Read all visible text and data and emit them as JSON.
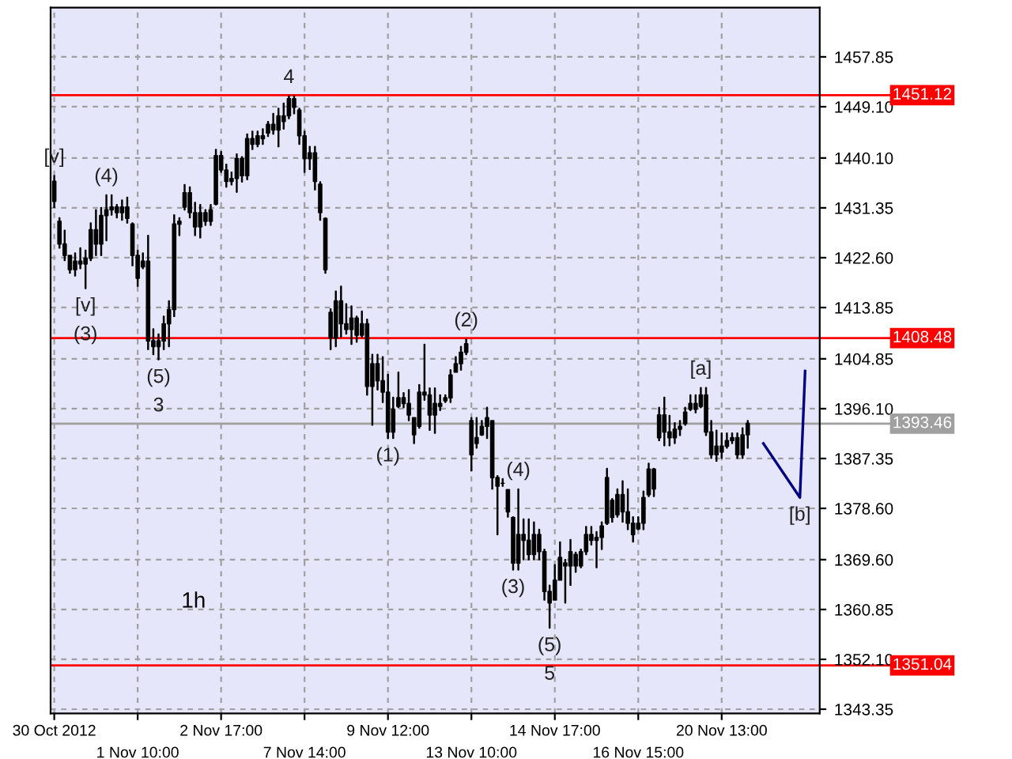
{
  "chart_data": {
    "type": "candlestick",
    "categories": [
      "30 Oct 2012",
      null,
      null,
      null,
      null,
      null,
      null,
      null,
      null,
      null,
      null,
      null,
      null,
      null,
      null,
      null,
      "1 Nov 10:00",
      null,
      null,
      null,
      null,
      null,
      null,
      null,
      null,
      null,
      null,
      null,
      null,
      null,
      null,
      null,
      "2 Nov 17:00",
      null,
      null,
      null,
      null,
      null,
      null,
      null,
      null,
      null,
      null,
      null,
      null,
      null,
      null,
      null,
      "7 Nov 14:00",
      null,
      null,
      null,
      null,
      null,
      null,
      null,
      null,
      null,
      null,
      null,
      null,
      null,
      null,
      null,
      "9 Nov 12:00",
      null,
      null,
      null,
      null,
      null,
      null,
      null,
      null,
      null,
      null,
      null,
      null,
      null,
      null,
      null,
      "13 Nov 10:00",
      null,
      null,
      null,
      null,
      null,
      null,
      null,
      null,
      null,
      null,
      null,
      null,
      null,
      null,
      null,
      "14 Nov 17:00",
      null,
      null,
      null,
      null,
      null,
      null,
      null,
      null,
      null,
      null,
      null,
      null,
      null,
      null,
      null,
      "16 Nov 15:00",
      null,
      null,
      null,
      null,
      null,
      null,
      null,
      null,
      null,
      null,
      null,
      null,
      null,
      null,
      null,
      "20 Nov 13:00",
      null,
      null,
      null,
      null,
      null,
      null,
      null,
      null,
      null,
      null,
      null,
      null,
      null,
      null,
      null,
      null,
      null,
      null,
      null
    ],
    "ohlc": [
      [
        1436,
        1437.0,
        1431.4,
        1432.5
      ],
      [
        1429.0,
        1429.6,
        1424.3,
        1425.0
      ],
      [
        1425.0,
        1427.4,
        1422.1,
        1423.0
      ],
      [
        1423.0,
        1423.0,
        1419.9,
        1420.5
      ],
      [
        1420.5,
        1423.4,
        1419.4,
        1422.0
      ],
      [
        1422.0,
        1424.3,
        1420.7,
        1421.5
      ],
      [
        1421.5,
        1423.9,
        1417.2,
        1422.5
      ],
      [
        1422.5,
        1428.7,
        1422.1,
        1427.5
      ],
      [
        1427.5,
        1431.0,
        1423.0,
        1425.0
      ],
      [
        1425.0,
        1431.4,
        1423.0,
        1430.0
      ],
      [
        1430.0,
        1433.6,
        1425.6,
        1431.0
      ],
      [
        1431.0,
        1433.6,
        1430.1,
        1431.5
      ],
      [
        1431.5,
        1431.9,
        1429.6,
        1430.5
      ],
      [
        1430.5,
        1432.7,
        1429.2,
        1431.5
      ],
      [
        1431.5,
        1433.2,
        1428.7,
        1429.5
      ],
      [
        1428.5,
        1428.7,
        1421.2,
        1423.0
      ],
      [
        1423.0,
        1423.9,
        1417.6,
        1419.0
      ],
      [
        1421.0,
        1423.4,
        1420.7,
        1422.0
      ],
      [
        1422.0,
        1426.5,
        1406.5,
        1408.0
      ],
      [
        1408.0,
        1410.1,
        1405.6,
        1407.0
      ],
      [
        1407.0,
        1409.2,
        1404.7,
        1408.0
      ],
      [
        1408.0,
        1412.3,
        1406.5,
        1411.0
      ],
      [
        1411.0,
        1415.0,
        1407.0,
        1413.5
      ],
      [
        1413.5,
        1430.1,
        1412.3,
        1428.5
      ],
      [
        1428.5,
        1429.6,
        1426.5,
        1429.0
      ],
      [
        1431.5,
        1435.4,
        1431.0,
        1434.0
      ],
      [
        1434.0,
        1435.0,
        1429.6,
        1430.5
      ],
      [
        1430.5,
        1432.3,
        1426.5,
        1428.0
      ],
      [
        1428.0,
        1431.9,
        1426.1,
        1430.5
      ],
      [
        1430.5,
        1431.0,
        1428.3,
        1429.0
      ],
      [
        1429.0,
        1431.9,
        1428.3,
        1431.0
      ],
      [
        1432.0,
        1441.6,
        1431.9,
        1440.5
      ],
      [
        1440.5,
        1441.2,
        1437.6,
        1438.0
      ],
      [
        1438.0,
        1439.0,
        1435.0,
        1436.0
      ],
      [
        1436.0,
        1437.6,
        1435.4,
        1436.5
      ],
      [
        1436.5,
        1440.8,
        1434.1,
        1440.0
      ],
      [
        1440.0,
        1440.3,
        1435.9,
        1437.0
      ],
      [
        1437.0,
        1444.3,
        1436.3,
        1443.5
      ],
      [
        1443.5,
        1444.8,
        1441.6,
        1442.5
      ],
      [
        1442.5,
        1444.8,
        1442.1,
        1444.0
      ],
      [
        1444.0,
        1445.2,
        1442.5,
        1443.5
      ],
      [
        1444.5,
        1446.5,
        1443.9,
        1446.0
      ],
      [
        1446.0,
        1447.9,
        1444.3,
        1445.0
      ],
      [
        1445.0,
        1448.8,
        1442.1,
        1447.5
      ],
      [
        1447.5,
        1449.7,
        1445.2,
        1446.5
      ],
      [
        1447.5,
        1451.0,
        1447.0,
        1450.5
      ],
      [
        1450.5,
        1451.0,
        1447.9,
        1449.0
      ],
      [
        1448.5,
        1448.8,
        1442.5,
        1444.0
      ],
      [
        1444.0,
        1444.8,
        1437.6,
        1440.0
      ],
      [
        1440.0,
        1442.1,
        1438.1,
        1441.0
      ],
      [
        1441.0,
        1442.1,
        1434.5,
        1436.0
      ],
      [
        1435.5,
        1435.9,
        1429.2,
        1430.5
      ],
      [
        1429.5,
        1429.6,
        1419.9,
        1420.5
      ],
      [
        1413.0,
        1413.6,
        1406.5,
        1408.5
      ],
      [
        1408.5,
        1416.7,
        1407.0,
        1415.0
      ],
      [
        1415.0,
        1417.6,
        1408.7,
        1411.0
      ],
      [
        1411.0,
        1414.5,
        1409.2,
        1410.0
      ],
      [
        1410.0,
        1414.1,
        1407.4,
        1412.0
      ],
      [
        1412.0,
        1412.3,
        1407.8,
        1409.0
      ],
      [
        1409.0,
        1413.2,
        1408.7,
        1411.0
      ],
      [
        1411.0,
        1411.8,
        1398.5,
        1400.0
      ],
      [
        1400.0,
        1405.6,
        1393.2,
        1404.0
      ],
      [
        1404.0,
        1405.6,
        1399.4,
        1401.0
      ],
      [
        1401.0,
        1405.2,
        1397.2,
        1399.0
      ],
      [
        1399.0,
        1402.1,
        1390.9,
        1392.0
      ],
      [
        1392.0,
        1398.1,
        1390.9,
        1396.0
      ],
      [
        1396.5,
        1402.5,
        1396.3,
        1398.0
      ],
      [
        1398.0,
        1398.9,
        1396.3,
        1397.0
      ],
      [
        1397.0,
        1399.4,
        1394.0,
        1395.0
      ],
      [
        1394.5,
        1394.5,
        1390.0,
        1391.5
      ],
      [
        1393.0,
        1400.3,
        1392.7,
        1399.0
      ],
      [
        1399.0,
        1407.4,
        1397.6,
        1398.5
      ],
      [
        1398.5,
        1399.7,
        1392.3,
        1395.0
      ],
      [
        1395.0,
        1399.7,
        1391.8,
        1397.0
      ],
      [
        1397.0,
        1398.5,
        1395.8,
        1396.5
      ],
      [
        1397.5,
        1398.5,
        1397.2,
        1398.0
      ],
      [
        1398.0,
        1402.9,
        1397.2,
        1402.0
      ],
      [
        1402.5,
        1405.2,
        1402.5,
        1404.0
      ],
      [
        1404.0,
        1407.0,
        1402.9,
        1406.0
      ],
      [
        1406.0,
        1408.3,
        1405.6,
        1407.5
      ],
      [
        1394.0,
        1394.5,
        1385.2,
        1388.0
      ],
      [
        1390.0,
        1394.5,
        1389.2,
        1391.0
      ],
      [
        1391.5,
        1394.0,
        1391.4,
        1393.0
      ],
      [
        1393.0,
        1396.3,
        1390.9,
        1394.5
      ],
      [
        1394.0,
        1394.0,
        1382.0,
        1384.0
      ],
      [
        1384.0,
        1384.3,
        1374.0,
        1382.5
      ],
      [
        1383.0,
        1383.8,
        1382.5,
        1383.0
      ],
      [
        1381.9,
        1381.9,
        1377.1,
        1378.0
      ],
      [
        1377.0,
        1377.1,
        1367.8,
        1369.0
      ],
      [
        1369.0,
        1382.0,
        1367.8,
        1374.0
      ],
      [
        1374.0,
        1376.7,
        1369.6,
        1373.0
      ],
      [
        1373.0,
        1376.7,
        1369.6,
        1370.5
      ],
      [
        1370.5,
        1376.2,
        1369.6,
        1374.0
      ],
      [
        1374.0,
        1374.9,
        1369.6,
        1371.0
      ],
      [
        1371.0,
        1371.4,
        1362.5,
        1364.0
      ],
      [
        1364.0,
        1365.1,
        1357.6,
        1362.0
      ],
      [
        1362.5,
        1368.7,
        1362.5,
        1366.0
      ],
      [
        1366.0,
        1372.7,
        1366.0,
        1370.0
      ],
      [
        1369.0,
        1369.6,
        1362.0,
        1368.5
      ],
      [
        1368.5,
        1373.1,
        1365.1,
        1371.0
      ],
      [
        1370.5,
        1370.9,
        1367.4,
        1368.5
      ],
      [
        1368.5,
        1371.4,
        1368.2,
        1371.0
      ],
      [
        1371.0,
        1375.4,
        1370.5,
        1374.0
      ],
      [
        1374.0,
        1375.4,
        1372.2,
        1373.0
      ],
      [
        1373.0,
        1374.5,
        1368.2,
        1373.5
      ],
      [
        1373.5,
        1376.2,
        1371.4,
        1375.5
      ],
      [
        1376.0,
        1385.6,
        1375.8,
        1384.0
      ],
      [
        1380.0,
        1380.3,
        1376.2,
        1377.0
      ],
      [
        1377.5,
        1382.0,
        1377.1,
        1381.0
      ],
      [
        1381.0,
        1383.4,
        1376.2,
        1378.0
      ],
      [
        1378.0,
        1382.0,
        1374.9,
        1376.0
      ],
      [
        1376.0,
        1377.1,
        1372.7,
        1374.0
      ],
      [
        1375.0,
        1377.1,
        1374.9,
        1376.0
      ],
      [
        1376.0,
        1381.6,
        1374.9,
        1380.5
      ],
      [
        1381.0,
        1386.5,
        1380.7,
        1385.5
      ],
      [
        1385.5,
        1385.6,
        1380.7,
        1382.0
      ],
      [
        1391.0,
        1396.3,
        1390.5,
        1395.0
      ],
      [
        1395.0,
        1398.1,
        1389.6,
        1392.0
      ],
      [
        1392.0,
        1394.9,
        1389.6,
        1391.0
      ],
      [
        1391.0,
        1393.6,
        1390.0,
        1392.5
      ],
      [
        1392.5,
        1394.0,
        1391.4,
        1393.0
      ],
      [
        1393.5,
        1396.3,
        1393.2,
        1395.5
      ],
      [
        1396.0,
        1398.5,
        1395.8,
        1397.0
      ],
      [
        1397.0,
        1398.5,
        1395.4,
        1396.0
      ],
      [
        1396.5,
        1399.8,
        1396.3,
        1398.5
      ],
      [
        1398.5,
        1399.8,
        1391.4,
        1392.0
      ],
      [
        1392.0,
        1394.0,
        1387.4,
        1388.0
      ],
      [
        1388.0,
        1392.3,
        1386.9,
        1389.5
      ],
      [
        1389.5,
        1391.8,
        1387.4,
        1388.5
      ],
      [
        1389.5,
        1391.8,
        1389.2,
        1390.5
      ],
      [
        1390.5,
        1391.8,
        1390.0,
        1391.0
      ],
      [
        1391.0,
        1391.8,
        1387.4,
        1388.0
      ],
      [
        1388.0,
        1392.7,
        1387.4,
        1391.5
      ],
      [
        1391.5,
        1394.0,
        1389.2,
        1393.5
      ],
      null,
      null,
      null,
      null,
      null,
      null,
      null,
      null,
      null,
      null,
      null,
      null,
      null,
      null
    ],
    "color": "#000000",
    "series": [
      {
        "type": "line",
        "color": "#000080",
        "values": [
          null,
          null,
          null,
          null,
          null,
          null,
          null,
          null,
          null,
          null,
          null,
          null,
          null,
          null,
          null,
          null,
          null,
          null,
          null,
          null,
          null,
          null,
          null,
          null,
          null,
          null,
          null,
          null,
          null,
          null,
          null,
          null,
          null,
          null,
          null,
          null,
          null,
          null,
          null,
          null,
          null,
          null,
          null,
          null,
          null,
          null,
          null,
          null,
          null,
          null,
          null,
          null,
          null,
          null,
          null,
          null,
          null,
          null,
          null,
          null,
          null,
          null,
          null,
          null,
          null,
          null,
          null,
          null,
          null,
          null,
          null,
          null,
          null,
          null,
          null,
          null,
          null,
          null,
          null,
          null,
          null,
          null,
          null,
          null,
          null,
          null,
          null,
          null,
          null,
          null,
          null,
          null,
          null,
          null,
          null,
          null,
          null,
          null,
          null,
          null,
          null,
          null,
          null,
          null,
          null,
          null,
          null,
          null,
          null,
          null,
          null,
          null,
          null,
          null,
          null,
          null,
          null,
          null,
          null,
          null,
          null,
          null,
          null,
          null,
          null,
          null,
          null,
          null,
          null,
          null,
          null,
          null,
          null,
          null,
          null,
          null,
          1390.0,
          null,
          null,
          null,
          null,
          null,
          null,
          1380.5,
          1402.7,
          null,
          null,
          null
        ]
      }
    ],
    "ylim": [
      1342.6,
      1466.5
    ],
    "yticks": [
      1457.85,
      {
        "value": 1449.1,
        "label": "1449.10"
      },
      {
        "value": 1440.1,
        "label": "1440.10"
      },
      1431.35,
      {
        "value": 1422.6,
        "label": "1422.60"
      },
      1413.85,
      1404.85,
      {
        "value": 1396.1,
        "label": "1396.10"
      },
      1387.35,
      {
        "value": 1378.6,
        "label": "1378.60"
      },
      {
        "value": 1369.6,
        "label": "1369.60"
      },
      1360.85,
      {
        "value": 1352.1,
        "label": "1352.10"
      },
      1343.35
    ],
    "ref_lines": [
      {
        "axis": "y",
        "value": 1451.12,
        "label": "1451.12",
        "color": "#ff0000"
      },
      {
        "axis": "y",
        "value": 1408.48,
        "label": "1408.48",
        "color": "#ff0000"
      },
      {
        "axis": "y",
        "value": 1393.46,
        "label": "1393.46",
        "color": "#a0a0a0"
      },
      {
        "axis": "y",
        "value": 1351.04,
        "label": "1351.04",
        "color": "#ff0000"
      }
    ],
    "annotations": [
      {
        "text": "[v]",
        "y": 1437.0
      },
      {
        "text": "(4)",
        "y": 1433.6
      },
      {
        "text": "[v]",
        "y": 1417.2
      },
      {
        "text": "(3)",
        "y": 1417.2
      },
      {
        "text": "(5)",
        "y": 1404.7
      },
      {
        "text": "3",
        "y": 1404.7
      },
      {
        "text": "4",
        "y": 1451.0
      },
      {
        "text": "(1)",
        "y": 1390.9
      },
      {
        "text": "(2)",
        "y": 1408.3
      },
      {
        "text": "(3)",
        "y": 1367.8
      },
      {
        "text": "(4)",
        "y": 1382.0
      },
      {
        "text": "(5)",
        "y": 1357.6
      },
      {
        "text": "5",
        "y": 1357.6
      },
      {
        "text": "[a]",
        "y": 1399.8
      },
      {
        "text": "[b]",
        "y": 1380.5
      },
      "1h"
    ],
    "grid": true,
    "legend": false
  }
}
